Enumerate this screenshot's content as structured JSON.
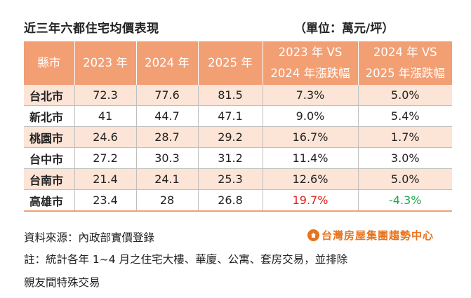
{
  "title": "近三年六都住宅均價表現",
  "unit": "（單位：萬元/坪）",
  "table": {
    "headers": {
      "city": "縣市",
      "y2023": "2023 年",
      "y2024": "2024 年",
      "y2025": "2025 年",
      "chg1_line1": "2023 年 VS",
      "chg1_line2": "2024 年漲跌幅",
      "chg2_line1": "2024 年 VS",
      "chg2_line2": "2025 年漲跌幅"
    },
    "rows": [
      {
        "city": "台北市",
        "y2023": "72.3",
        "y2024": "77.6",
        "y2025": "81.5",
        "chg1": "7.3%",
        "chg2": "5.0%"
      },
      {
        "city": "新北市",
        "y2023": "41",
        "y2024": "44.7",
        "y2025": "47.1",
        "chg1": "9.0%",
        "chg2": "5.4%"
      },
      {
        "city": "桃園市",
        "y2023": "24.6",
        "y2024": "28.7",
        "y2025": "29.2",
        "chg1": "16.7%",
        "chg2": "1.7%"
      },
      {
        "city": "台中市",
        "y2023": "27.2",
        "y2024": "30.3",
        "y2025": "31.2",
        "chg1": "11.4%",
        "chg2": "3.0%"
      },
      {
        "city": "台南市",
        "y2023": "21.4",
        "y2024": "24.1",
        "y2025": "25.3",
        "chg1": "12.6%",
        "chg2": "5.0%"
      },
      {
        "city": "高雄市",
        "y2023": "23.4",
        "y2024": "28",
        "y2025": "26.8",
        "chg1": "19.7%",
        "chg2": "-4.3%"
      }
    ]
  },
  "source": "資料來源：內政部實價登錄",
  "logo_text": "台灣房屋集團趨勢中心",
  "note_line1": "註：統計各年 1~4 月之住宅大樓、華廈、公寓、套房交易，並排除",
  "note_line2": "親友間特殊交易",
  "colors": {
    "header_bg": "#f29f74",
    "stripe_bg": "#fce4d6",
    "highlight_red": "#e0201b",
    "highlight_green": "#1fa84f",
    "logo_orange": "#e8731c"
  }
}
